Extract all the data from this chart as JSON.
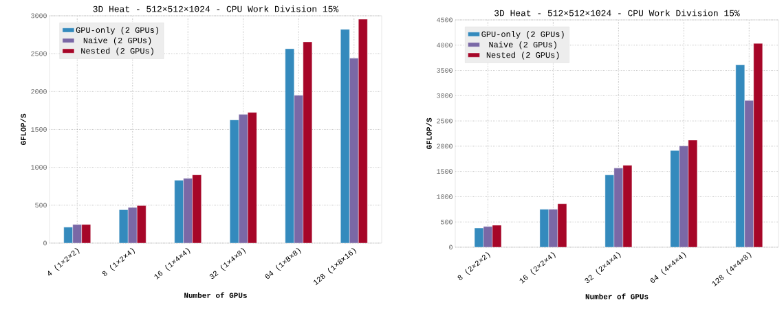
{
  "chart_data": [
    {
      "type": "bar",
      "title": "3D Heat - 512×512×1024 - CPU Work Division 15%",
      "xlabel": "Number of GPUs",
      "ylabel": "GFLOP/S",
      "categories": [
        "4 (1×2×2)",
        "8 (1×2×4)",
        "16 (1×4×4)",
        "32 (1×4×8)",
        "64 (1×8×8)",
        "128 (1×8×16)"
      ],
      "series": [
        {
          "name": "GPU-only (2 GPUs)",
          "color": "#348abd",
          "values": [
            210,
            440,
            830,
            1625,
            2565,
            2820
          ]
        },
        {
          "name": "Naive (2 GPUs)",
          "color": "#7a68a6",
          "values": [
            245,
            470,
            855,
            1700,
            1950,
            2440
          ]
        },
        {
          "name": "Nested (2 GPUs)",
          "color": "#a60628",
          "values": [
            245,
            495,
            900,
            1725,
            2655,
            2955
          ]
        }
      ],
      "ylim": [
        0,
        3000
      ],
      "yticks": [
        0,
        500,
        1000,
        1500,
        2000,
        2500,
        3000
      ],
      "grid": true,
      "legend": "top left"
    },
    {
      "type": "bar",
      "title": "3D Heat - 512×512×1024 - CPU Work Division 15%",
      "xlabel": "Number of GPUs",
      "ylabel": "GFLOP/S",
      "categories": [
        "8 (2×2×2)",
        "16 (2×2×4)",
        "32 (2×4×4)",
        "64 (4×4×4)",
        "128 (4×4×8)"
      ],
      "series": [
        {
          "name": "GPU-only (2 GPUs)",
          "color": "#348abd",
          "values": [
            380,
            750,
            1430,
            1915,
            3610
          ]
        },
        {
          "name": "Naive (2 GPUs)",
          "color": "#7a68a6",
          "values": [
            410,
            750,
            1565,
            2005,
            2905
          ]
        },
        {
          "name": "Nested (2 GPUs)",
          "color": "#a60628",
          "values": [
            435,
            860,
            1620,
            2120,
            4035
          ]
        }
      ],
      "ylim": [
        0,
        4500
      ],
      "yticks": [
        0,
        500,
        1000,
        1500,
        2000,
        2500,
        3000,
        3500,
        4000,
        4500
      ],
      "grid": true,
      "legend": "top left"
    }
  ]
}
